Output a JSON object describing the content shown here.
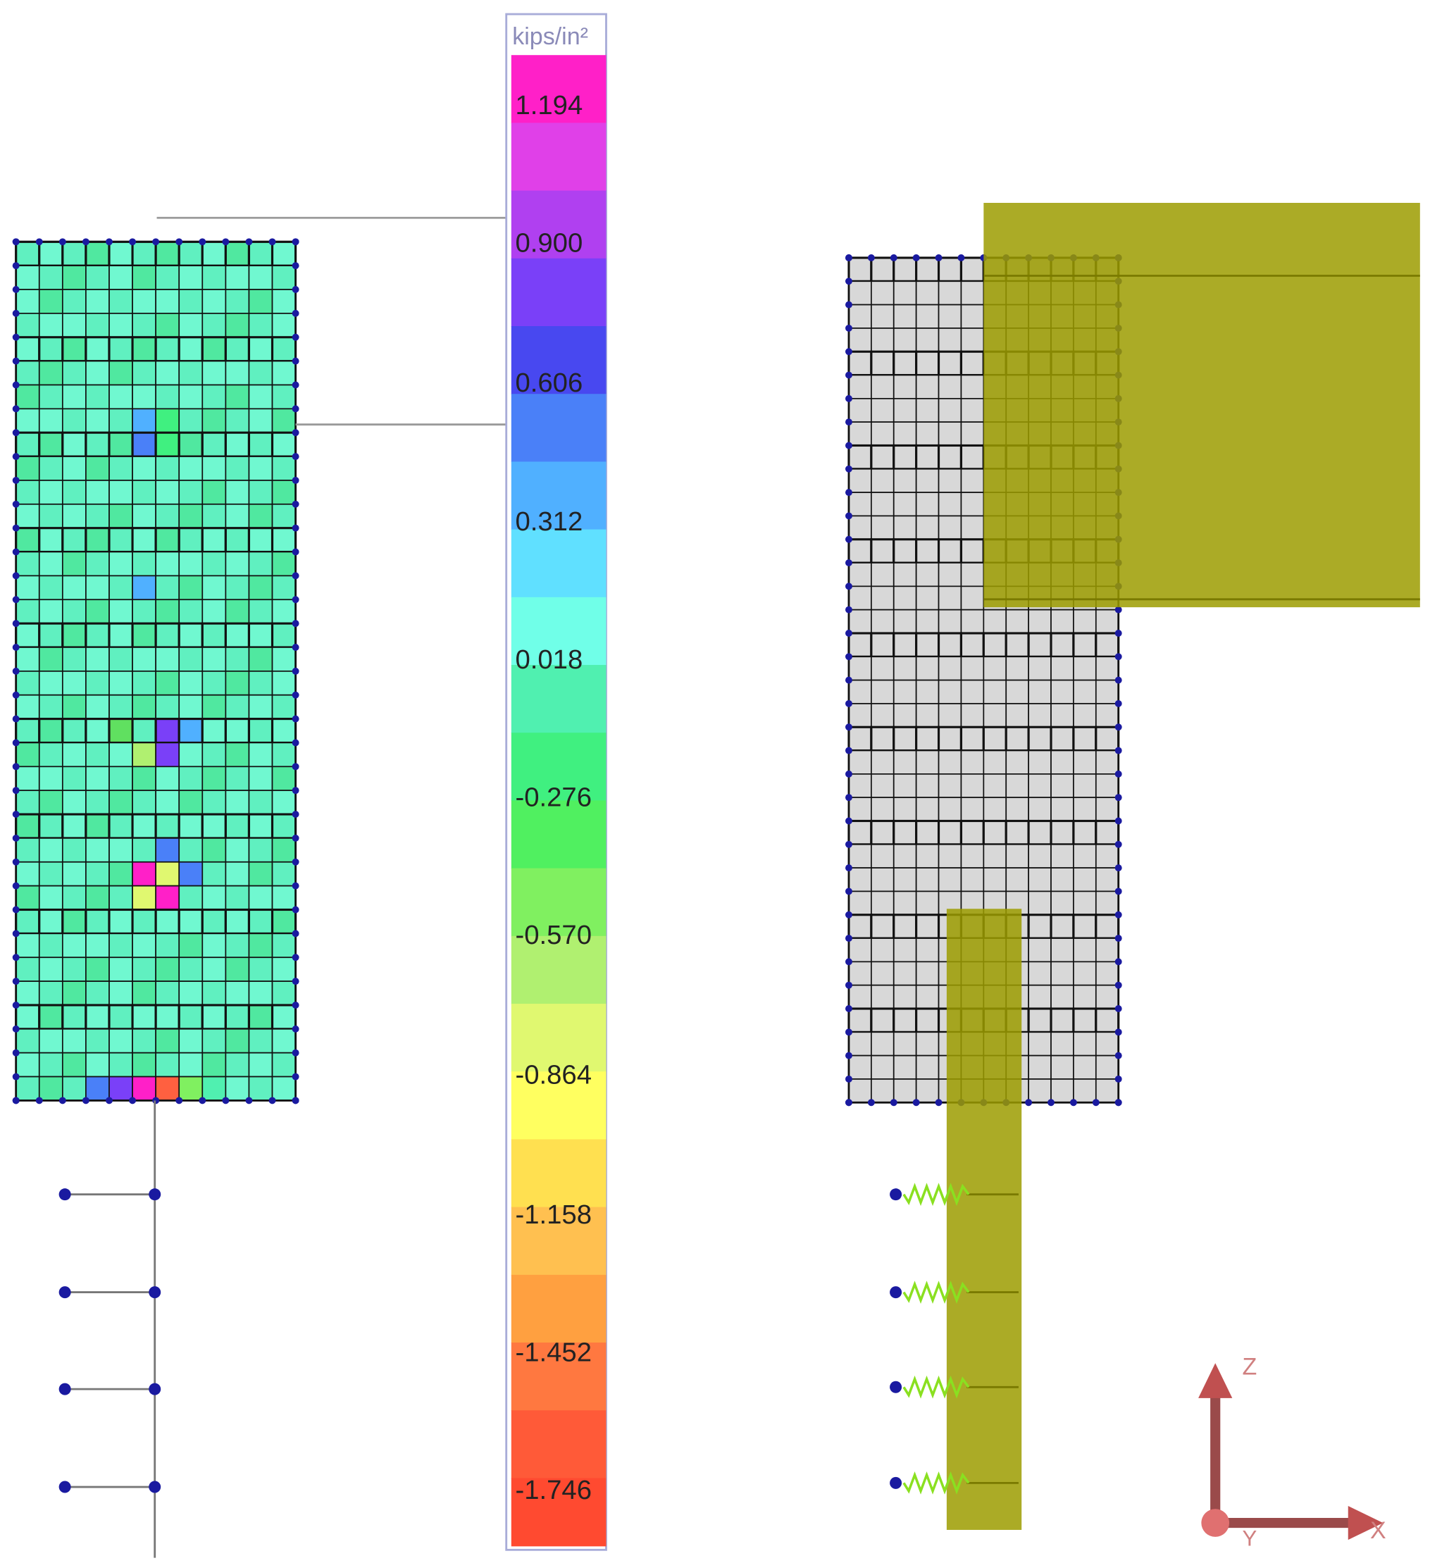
{
  "legend": {
    "unit": "kips/in²",
    "labels": [
      "1.194",
      "0.900",
      "0.606",
      "0.312",
      "0.018",
      "-0.276",
      "-0.570",
      "-0.864",
      "-1.158",
      "-1.452",
      "-1.746"
    ]
  },
  "axes": {
    "z": "Z",
    "y": "Y",
    "x": "X"
  }
}
